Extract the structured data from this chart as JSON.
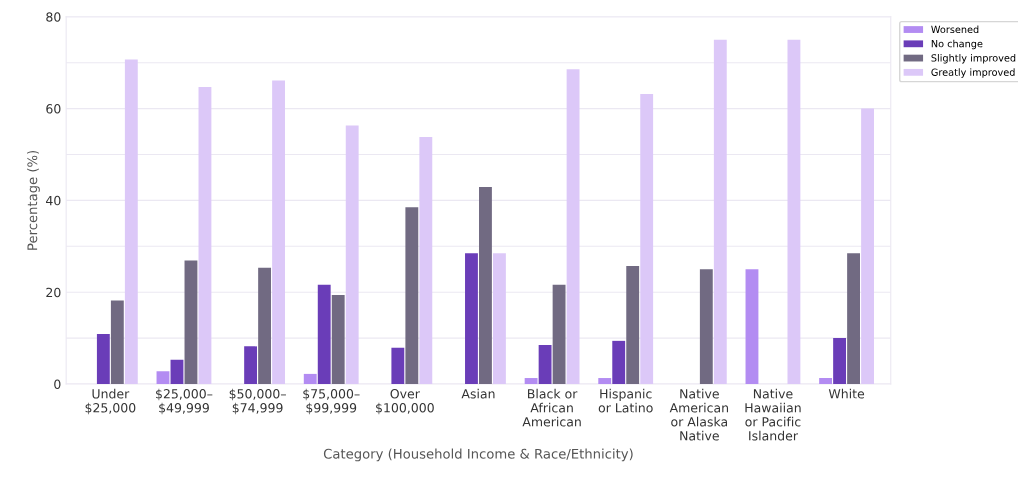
{
  "chart_data": {
    "type": "bar",
    "xlabel": "Category (Household Income & Race/Ethnicity)",
    "ylabel": "Percentage (%)",
    "categories": [
      "Under\n$25,000",
      "$25,000–\n$49,999",
      "$50,000–\n$74,999",
      "$75,000–\n$99,999",
      "Over\n$100,000",
      "Asian",
      "Black or\nAfrican\nAmerican",
      "Hispanic\nor Latino",
      "Native\nAmerican\nor Alaska\nNative",
      "Native\nHawaiian\nor Pacific\nIslander",
      "White"
    ],
    "series": [
      {
        "name": "Worsened",
        "color": "#b38cf2",
        "values": [
          0,
          2.8,
          0,
          2.2,
          0,
          0,
          1.3,
          1.3,
          0,
          25,
          1.3
        ]
      },
      {
        "name": "No change",
        "color": "#6a3db8",
        "values": [
          10.9,
          5.3,
          8.2,
          21.6,
          7.9,
          28.5,
          8.5,
          9.4,
          0,
          0,
          10.0
        ]
      },
      {
        "name": "Slightly improved",
        "color": "#716a82",
        "values": [
          18.2,
          26.9,
          25.3,
          19.4,
          38.5,
          42.9,
          21.6,
          25.7,
          25,
          0,
          28.5
        ]
      },
      {
        "name": "Greatly improved",
        "color": "#dcc8f8",
        "values": [
          70.7,
          64.7,
          66.1,
          56.3,
          53.8,
          28.5,
          68.6,
          63.2,
          75,
          75,
          60.0
        ]
      }
    ],
    "ylim": [
      0,
      80
    ],
    "yticks": [
      0,
      {
        "value": 10,
        "label": null
      },
      20,
      {
        "value": 30,
        "label": null
      },
      40,
      {
        "value": 50,
        "label": null
      },
      60,
      {
        "value": 70,
        "label": null
      },
      80
    ],
    "grid": "y",
    "legend": "top right"
  }
}
